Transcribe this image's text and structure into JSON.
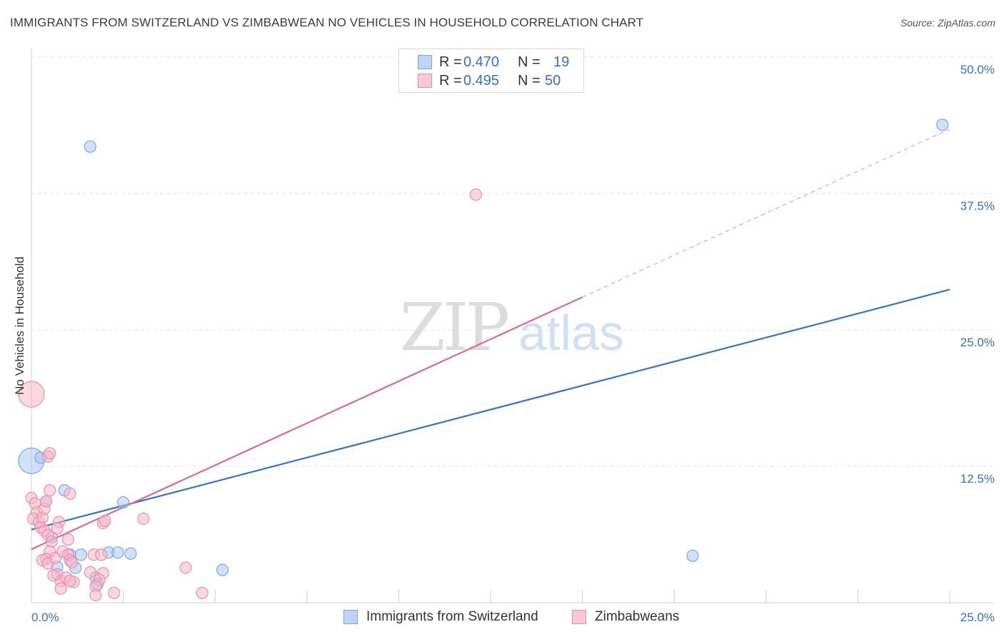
{
  "header": {
    "title": "IMMIGRANTS FROM SWITZERLAND VS ZIMBABWEAN NO VEHICLES IN HOUSEHOLD CORRELATION CHART",
    "source": "Source: ZipAtlas.com"
  },
  "watermark": {
    "zip": "ZIP",
    "atlas": "atlas"
  },
  "legend": {
    "r_label": "R =",
    "n_label": "N =",
    "series": [
      {
        "name": "Immigrants from Switzerland",
        "r": "0.470",
        "n": "19"
      },
      {
        "name": "Zimbabweans",
        "r": "0.495",
        "n": "50"
      }
    ]
  },
  "colors": {
    "blue_fill": "#a9c8f3",
    "blue_stroke": "#7ba6e0",
    "blue_line": "#2e74d0",
    "pink_fill": "#f6b6c9",
    "pink_stroke": "#ea8fab",
    "pink_line": "#e0678f",
    "tick_text": "#3a6fc8",
    "grid": "#e3e3e3"
  },
  "chart_data": {
    "type": "scatter",
    "title": "IMMIGRANTS FROM SWITZERLAND VS ZIMBABWEAN NO VEHICLES IN HOUSEHOLD CORRELATION CHART",
    "xlabel": "",
    "ylabel": "No Vehicles in Household",
    "xlim": [
      0,
      25
    ],
    "ylim": [
      0,
      50
    ],
    "x_tick_labels": [
      "0.0%",
      "25.0%"
    ],
    "y_ticks": [
      12.5,
      25,
      37.5,
      50
    ],
    "y_tick_labels": [
      "12.5%",
      "25.0%",
      "37.5%",
      "50.0%"
    ],
    "grid": true,
    "series": [
      {
        "name": "Immigrants from Switzerland",
        "color": "blue",
        "points": [
          {
            "x": 0.0,
            "y": 13.0,
            "big": true
          },
          {
            "x": 0.25,
            "y": 13.3
          },
          {
            "x": 0.4,
            "y": 9.3
          },
          {
            "x": 0.9,
            "y": 10.3
          },
          {
            "x": 1.6,
            "y": 41.8
          },
          {
            "x": 0.55,
            "y": 6.0
          },
          {
            "x": 1.05,
            "y": 4.4
          },
          {
            "x": 1.35,
            "y": 4.4
          },
          {
            "x": 1.2,
            "y": 3.2
          },
          {
            "x": 0.7,
            "y": 3.3
          },
          {
            "x": 2.1,
            "y": 4.6
          },
          {
            "x": 2.35,
            "y": 4.6
          },
          {
            "x": 2.7,
            "y": 4.5
          },
          {
            "x": 2.5,
            "y": 9.2
          },
          {
            "x": 1.75,
            "y": 2.3
          },
          {
            "x": 1.8,
            "y": 1.7
          },
          {
            "x": 5.2,
            "y": 3.0
          },
          {
            "x": 18.0,
            "y": 4.3
          },
          {
            "x": 24.8,
            "y": 43.8
          }
        ],
        "trend": {
          "x0": 0,
          "y0": 6.7,
          "x1": 25,
          "y1": 28.7
        }
      },
      {
        "name": "Zimbabweans",
        "color": "pink",
        "points": [
          {
            "x": 0.0,
            "y": 19.1,
            "big": true
          },
          {
            "x": 0.0,
            "y": 9.6
          },
          {
            "x": 0.1,
            "y": 9.1
          },
          {
            "x": 0.15,
            "y": 8.3
          },
          {
            "x": 0.05,
            "y": 7.7
          },
          {
            "x": 0.2,
            "y": 7.4
          },
          {
            "x": 0.3,
            "y": 7.8
          },
          {
            "x": 0.25,
            "y": 6.9
          },
          {
            "x": 0.35,
            "y": 8.6
          },
          {
            "x": 0.4,
            "y": 9.3
          },
          {
            "x": 0.45,
            "y": 13.4
          },
          {
            "x": 0.5,
            "y": 13.7
          },
          {
            "x": 0.5,
            "y": 10.3
          },
          {
            "x": 0.35,
            "y": 6.6
          },
          {
            "x": 0.45,
            "y": 6.2
          },
          {
            "x": 0.55,
            "y": 5.6
          },
          {
            "x": 0.5,
            "y": 4.7
          },
          {
            "x": 0.4,
            "y": 4.0
          },
          {
            "x": 0.3,
            "y": 3.9
          },
          {
            "x": 0.45,
            "y": 3.6
          },
          {
            "x": 0.65,
            "y": 4.1
          },
          {
            "x": 0.75,
            "y": 7.4
          },
          {
            "x": 0.7,
            "y": 6.8
          },
          {
            "x": 1.0,
            "y": 5.8
          },
          {
            "x": 0.85,
            "y": 4.7
          },
          {
            "x": 1.0,
            "y": 4.4
          },
          {
            "x": 1.05,
            "y": 3.9
          },
          {
            "x": 1.1,
            "y": 3.7
          },
          {
            "x": 1.05,
            "y": 10.0
          },
          {
            "x": 0.7,
            "y": 2.6
          },
          {
            "x": 0.8,
            "y": 2.0
          },
          {
            "x": 0.8,
            "y": 1.3
          },
          {
            "x": 0.95,
            "y": 2.3
          },
          {
            "x": 1.15,
            "y": 1.9
          },
          {
            "x": 1.6,
            "y": 2.8
          },
          {
            "x": 1.7,
            "y": 4.4
          },
          {
            "x": 1.9,
            "y": 4.4
          },
          {
            "x": 1.95,
            "y": 2.7
          },
          {
            "x": 1.85,
            "y": 2.1
          },
          {
            "x": 1.75,
            "y": 1.5
          },
          {
            "x": 1.75,
            "y": 0.7
          },
          {
            "x": 2.25,
            "y": 0.9
          },
          {
            "x": 1.95,
            "y": 7.3
          },
          {
            "x": 2.0,
            "y": 7.5
          },
          {
            "x": 3.05,
            "y": 7.7
          },
          {
            "x": 4.2,
            "y": 3.2
          },
          {
            "x": 4.65,
            "y": 0.9
          },
          {
            "x": 12.1,
            "y": 37.4
          },
          {
            "x": 1.05,
            "y": 2.0
          },
          {
            "x": 0.6,
            "y": 2.5
          }
        ],
        "trend": {
          "x0": 0,
          "y0": 4.9,
          "x1": 15,
          "y1": 28.0
        },
        "trend_extension": {
          "x0": 15,
          "y0": 28.0,
          "x1": 25,
          "y1": 43.4
        }
      }
    ]
  }
}
